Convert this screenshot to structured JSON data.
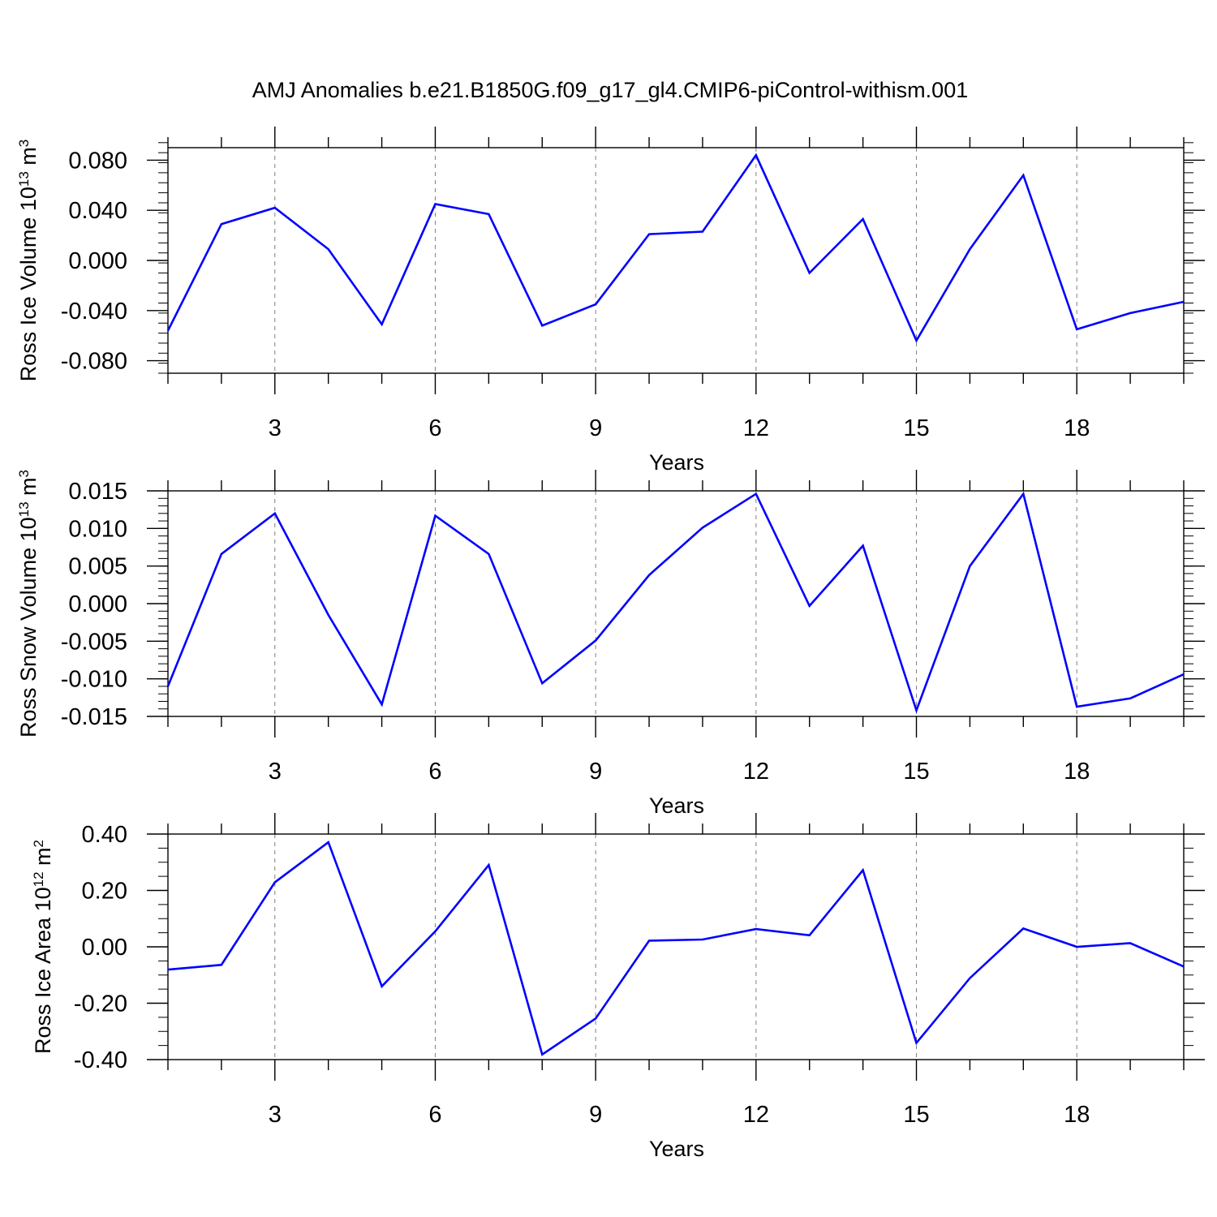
{
  "title": "AMJ Anomalies b.e21.B1850G.f09_g17_gl4.CMIP6-piControl-withism.001",
  "colors": {
    "line": "#0000ff",
    "axes": "#000000",
    "grid": "#808080"
  },
  "chart_data": [
    {
      "type": "line",
      "ylabel": {
        "main": "Ross Ice Volume 10",
        "sup": "13",
        "unit": " m",
        "unit_sup": "3"
      },
      "xlabel": "Years",
      "xlim": [
        1,
        20
      ],
      "ylim": [
        -0.09,
        0.09
      ],
      "x_ticks": [
        3,
        6,
        9,
        12,
        15,
        18
      ],
      "x_tick_labels": [
        "3",
        "6",
        "9",
        "12",
        "15",
        "18"
      ],
      "y_ticks": [
        -0.08,
        -0.04,
        0.0,
        0.04,
        0.08
      ],
      "y_tick_labels": [
        "-0.080",
        "-0.040",
        "0.000",
        "0.040",
        "0.080"
      ],
      "y_minor_step": 0.008,
      "grid": "vertical-dashed",
      "x": [
        1,
        2,
        3,
        4,
        5,
        6,
        7,
        8,
        9,
        10,
        11,
        12,
        13,
        14,
        15,
        16,
        17,
        18,
        19,
        20
      ],
      "values": [
        -0.056,
        0.029,
        0.042,
        0.009,
        -0.051,
        0.045,
        0.037,
        -0.052,
        -0.035,
        0.021,
        0.023,
        0.084,
        -0.01,
        0.033,
        -0.064,
        0.009,
        0.068,
        -0.055,
        -0.042,
        -0.033
      ]
    },
    {
      "type": "line",
      "ylabel": {
        "main": "Ross Snow Volume 10",
        "sup": "13",
        "unit": " m",
        "unit_sup": "3"
      },
      "xlabel": "Years",
      "xlim": [
        1,
        20
      ],
      "ylim": [
        -0.015,
        0.015
      ],
      "x_ticks": [
        3,
        6,
        9,
        12,
        15,
        18
      ],
      "x_tick_labels": [
        "3",
        "6",
        "9",
        "12",
        "15",
        "18"
      ],
      "y_ticks": [
        -0.015,
        -0.01,
        -0.005,
        0.0,
        0.005,
        0.01,
        0.015
      ],
      "y_tick_labels": [
        "-0.015",
        "-0.010",
        "-0.005",
        "0.000",
        "0.005",
        "0.010",
        "0.015"
      ],
      "y_minor_step": 0.001,
      "grid": "vertical-dashed",
      "x": [
        1,
        2,
        3,
        4,
        5,
        6,
        7,
        8,
        9,
        10,
        11,
        12,
        13,
        14,
        15,
        16,
        17,
        18,
        19,
        20
      ],
      "values": [
        -0.011,
        0.0066,
        0.012,
        -0.0015,
        -0.0134,
        0.0117,
        0.0066,
        -0.0106,
        -0.0049,
        0.0038,
        0.0101,
        0.0146,
        -0.0003,
        0.0077,
        -0.0142,
        0.005,
        0.0146,
        -0.0137,
        -0.0126,
        -0.0094
      ]
    },
    {
      "type": "line",
      "ylabel": {
        "main": "Ross Ice Area 10",
        "sup": "12",
        "unit": " m",
        "unit_sup": "2"
      },
      "xlabel": "Years",
      "xlim": [
        1,
        20
      ],
      "ylim": [
        -0.4,
        0.4
      ],
      "x_ticks": [
        3,
        6,
        9,
        12,
        15,
        18
      ],
      "x_tick_labels": [
        "3",
        "6",
        "9",
        "12",
        "15",
        "18"
      ],
      "y_ticks": [
        -0.4,
        -0.2,
        0.0,
        0.2,
        0.4
      ],
      "y_tick_labels": [
        "-0.40",
        "-0.20",
        "0.00",
        "0.20",
        "0.40"
      ],
      "y_minor_step": 0.05,
      "grid": "vertical-dashed",
      "x": [
        1,
        2,
        3,
        4,
        5,
        6,
        7,
        8,
        9,
        10,
        11,
        12,
        13,
        14,
        15,
        16,
        17,
        18,
        19,
        20
      ],
      "values": [
        -0.081,
        -0.064,
        0.229,
        0.371,
        -0.14,
        0.055,
        0.29,
        -0.382,
        -0.254,
        0.022,
        0.026,
        0.063,
        0.041,
        0.272,
        -0.341,
        -0.111,
        0.065,
        0.0,
        0.013,
        -0.07
      ]
    }
  ]
}
